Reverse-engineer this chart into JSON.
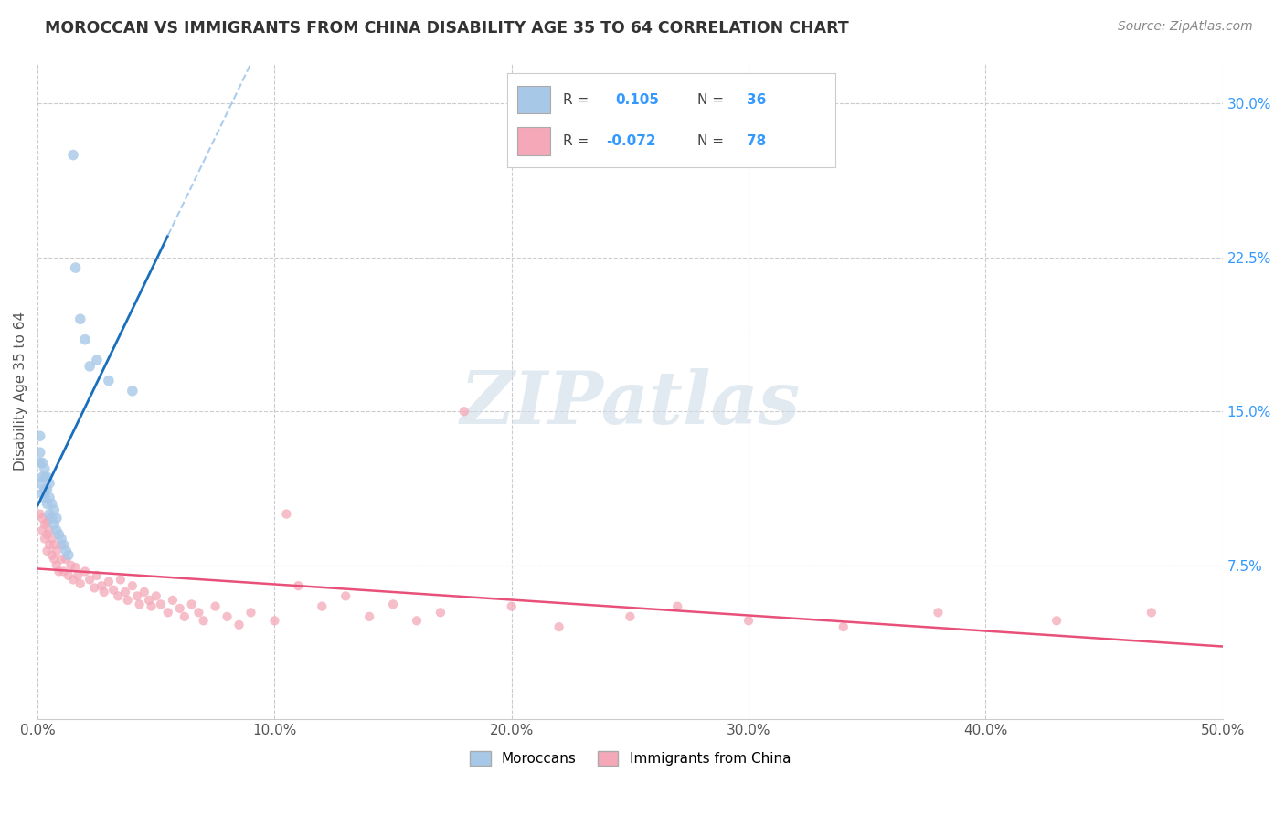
{
  "title": "MOROCCAN VS IMMIGRANTS FROM CHINA DISABILITY AGE 35 TO 64 CORRELATION CHART",
  "source": "Source: ZipAtlas.com",
  "ylabel": "Disability Age 35 to 64",
  "xlim": [
    0.0,
    0.5
  ],
  "ylim": [
    0.0,
    0.32
  ],
  "xticks": [
    0.0,
    0.1,
    0.2,
    0.3,
    0.4,
    0.5
  ],
  "xtick_labels": [
    "0.0%",
    "10.0%",
    "20.0%",
    "30.0%",
    "40.0%",
    "50.0%"
  ],
  "yticks": [
    0.075,
    0.15,
    0.225,
    0.3
  ],
  "ytick_labels": [
    "7.5%",
    "15.0%",
    "22.5%",
    "30.0%"
  ],
  "blue_color": "#a8c8e8",
  "pink_color": "#f4a8b8",
  "blue_line_color": "#1a6fbd",
  "blue_dash_color": "#aaccee",
  "pink_line_color": "#e8507a",
  "r_blue": 0.105,
  "n_blue": 36,
  "r_pink": -0.072,
  "n_pink": 78,
  "legend_label_blue": "Moroccans",
  "legend_label_pink": "Immigrants from China",
  "watermark": "ZIPatlas",
  "background_color": "#ffffff",
  "grid_color": "#cccccc",
  "blue_scatter_x": [
    0.001,
    0.001,
    0.001,
    0.001,
    0.002,
    0.002,
    0.002,
    0.003,
    0.003,
    0.003,
    0.003,
    0.004,
    0.004,
    0.004,
    0.005,
    0.005,
    0.005,
    0.006,
    0.006,
    0.007,
    0.007,
    0.008,
    0.008,
    0.009,
    0.01,
    0.011,
    0.012,
    0.013,
    0.015,
    0.016,
    0.018,
    0.02,
    0.022,
    0.025,
    0.03,
    0.04
  ],
  "blue_scatter_y": [
    0.115,
    0.125,
    0.13,
    0.138,
    0.11,
    0.118,
    0.125,
    0.108,
    0.112,
    0.118,
    0.122,
    0.105,
    0.112,
    0.118,
    0.1,
    0.108,
    0.115,
    0.098,
    0.105,
    0.095,
    0.102,
    0.092,
    0.098,
    0.09,
    0.088,
    0.085,
    0.082,
    0.08,
    0.275,
    0.22,
    0.195,
    0.185,
    0.172,
    0.175,
    0.165,
    0.16
  ],
  "pink_scatter_x": [
    0.001,
    0.002,
    0.002,
    0.003,
    0.003,
    0.004,
    0.004,
    0.004,
    0.005,
    0.005,
    0.005,
    0.006,
    0.006,
    0.007,
    0.007,
    0.008,
    0.008,
    0.009,
    0.01,
    0.01,
    0.011,
    0.012,
    0.013,
    0.014,
    0.015,
    0.016,
    0.017,
    0.018,
    0.02,
    0.022,
    0.024,
    0.025,
    0.027,
    0.028,
    0.03,
    0.032,
    0.034,
    0.035,
    0.037,
    0.038,
    0.04,
    0.042,
    0.043,
    0.045,
    0.047,
    0.048,
    0.05,
    0.052,
    0.055,
    0.057,
    0.06,
    0.062,
    0.065,
    0.068,
    0.07,
    0.075,
    0.08,
    0.085,
    0.09,
    0.1,
    0.105,
    0.11,
    0.12,
    0.13,
    0.14,
    0.15,
    0.16,
    0.17,
    0.18,
    0.2,
    0.22,
    0.25,
    0.27,
    0.3,
    0.34,
    0.38,
    0.43,
    0.47
  ],
  "pink_scatter_y": [
    0.1,
    0.092,
    0.098,
    0.088,
    0.095,
    0.082,
    0.09,
    0.096,
    0.085,
    0.092,
    0.098,
    0.08,
    0.088,
    0.078,
    0.085,
    0.075,
    0.082,
    0.072,
    0.078,
    0.085,
    0.072,
    0.078,
    0.07,
    0.075,
    0.068,
    0.074,
    0.07,
    0.066,
    0.072,
    0.068,
    0.064,
    0.07,
    0.065,
    0.062,
    0.067,
    0.063,
    0.06,
    0.068,
    0.062,
    0.058,
    0.065,
    0.06,
    0.056,
    0.062,
    0.058,
    0.055,
    0.06,
    0.056,
    0.052,
    0.058,
    0.054,
    0.05,
    0.056,
    0.052,
    0.048,
    0.055,
    0.05,
    0.046,
    0.052,
    0.048,
    0.1,
    0.065,
    0.055,
    0.06,
    0.05,
    0.056,
    0.048,
    0.052,
    0.15,
    0.055,
    0.045,
    0.05,
    0.055,
    0.048,
    0.045,
    0.052,
    0.048,
    0.052
  ]
}
